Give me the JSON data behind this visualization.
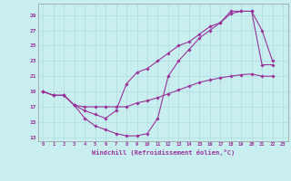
{
  "xlabel": "Windchill (Refroidissement éolien,°C)",
  "background_color": "#c8eef0",
  "grid_color": "#b0dde0",
  "line_color": "#993399",
  "xlim": [
    -0.5,
    23.5
  ],
  "ylim": [
    12.5,
    30.5
  ],
  "yticks": [
    13,
    15,
    17,
    19,
    21,
    23,
    25,
    27,
    29
  ],
  "xticks": [
    0,
    1,
    2,
    3,
    4,
    5,
    6,
    7,
    8,
    9,
    10,
    11,
    12,
    13,
    14,
    15,
    16,
    17,
    18,
    19,
    20,
    21,
    22,
    23
  ],
  "line1_x": [
    0,
    1,
    2,
    3,
    4,
    5,
    6,
    7,
    8,
    9,
    10,
    11,
    12,
    13,
    14,
    15,
    16,
    17,
    18,
    19,
    20,
    21,
    22
  ],
  "line1_y": [
    19,
    18.5,
    18.5,
    17.2,
    15.5,
    14.5,
    14.0,
    13.5,
    13.2,
    13.2,
    13.5,
    15.5,
    21,
    23,
    24.5,
    26,
    27,
    28,
    29.2,
    29.5,
    29.5,
    22.5,
    22.5
  ],
  "line2_x": [
    0,
    1,
    2,
    3,
    4,
    5,
    6,
    7,
    8,
    9,
    10,
    11,
    12,
    13,
    14,
    15,
    16,
    17,
    18,
    19,
    20,
    21,
    22
  ],
  "line2_y": [
    19,
    18.5,
    18.5,
    17.2,
    16.5,
    16,
    15.5,
    16.5,
    20,
    21.5,
    22,
    23,
    24,
    25,
    25.5,
    26.5,
    27.5,
    28,
    29.5,
    29.5,
    29.5,
    27,
    23
  ],
  "line3_x": [
    0,
    1,
    2,
    3,
    4,
    5,
    6,
    7,
    8,
    9,
    10,
    11,
    12,
    13,
    14,
    15,
    16,
    17,
    18,
    19,
    20,
    21,
    22
  ],
  "line3_y": [
    19,
    18.5,
    18.5,
    17.2,
    17,
    17,
    17,
    17,
    17,
    17.5,
    17.8,
    18.2,
    18.7,
    19.2,
    19.7,
    20.2,
    20.5,
    20.8,
    21,
    21.2,
    21.3,
    21,
    21
  ]
}
